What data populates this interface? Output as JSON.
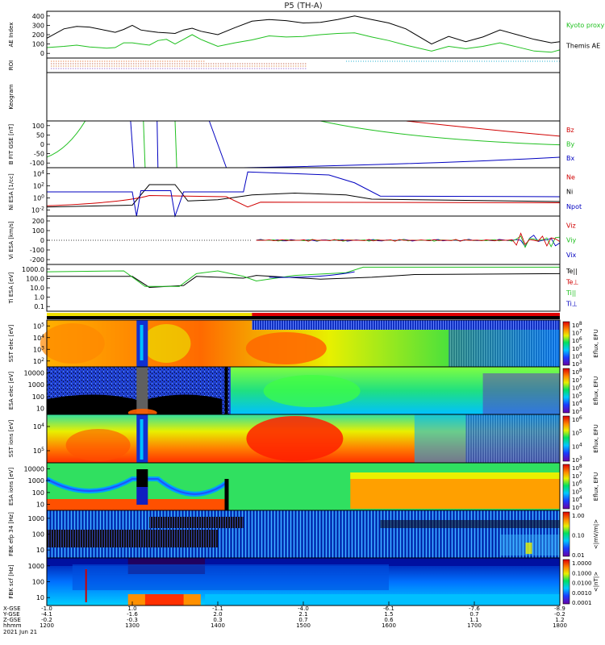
{
  "chart_data": {
    "type": "line",
    "title": "P5 (TH-A)",
    "date_label": "2021 Jun 21",
    "x_axis": {
      "unit_row_labels": [
        "X-GSE",
        "Y-GSE",
        "Z-GSE",
        "hhmm"
      ],
      "hhmm_ticks": [
        "1200",
        "1300",
        "1400",
        "1500",
        "1600",
        "1700",
        "1800"
      ],
      "x_gse": [
        "-1.0",
        "1.0",
        "-1.1",
        "-4.0",
        "-6.1",
        "-7.6",
        "-8.9"
      ],
      "y_gse": [
        "-4.1",
        "-1.6",
        "2.0",
        "2.1",
        "1.5",
        "0.7",
        "-0.2"
      ],
      "z_gse": [
        "-0.2",
        "-0.3",
        "0.3",
        "0.7",
        "0.6",
        "1.1",
        "1.2"
      ]
    },
    "panels": [
      {
        "id": "ae",
        "ylabel": "AE Index",
        "yticks": [
          "0",
          "100",
          "200",
          "300",
          "400"
        ],
        "ylim": [
          0,
          400
        ],
        "legend": [
          "Kyoto proxy AE",
          "Themis AE"
        ],
        "legend_colors": [
          "#20c020",
          "#000000"
        ],
        "series": [
          {
            "name": "Themis AE",
            "color": "#000000",
            "x": [
              0,
              0.2,
              0.35,
              0.5,
              0.7,
              0.8,
              0.9,
              1.0,
              1.1,
              1.2,
              1.3,
              1.4,
              1.5,
              1.6,
              1.7,
              1.8,
              2.0,
              2.2,
              2.4,
              2.6,
              2.8,
              3.0,
              3.2,
              3.4,
              3.6,
              3.8,
              4.0,
              4.2,
              4.5,
              4.7,
              4.9,
              5.1,
              5.3,
              5.5,
              5.7,
              5.9,
              6.0
            ],
            "y": [
              170,
              250,
              270,
              265,
              235,
              220,
              245,
              280,
              240,
              230,
              220,
              215,
              210,
              240,
              255,
              230,
              200,
              260,
              315,
              330,
              320,
              300,
              305,
              330,
              360,
              330,
              300,
              250,
              120,
              185,
              140,
              180,
              240,
              200,
              160,
              130,
              140
            ]
          },
          {
            "name": "Kyoto proxy AE",
            "color": "#20c020",
            "x": [
              0,
              0.2,
              0.35,
              0.5,
              0.7,
              0.8,
              0.9,
              1.0,
              1.1,
              1.2,
              1.3,
              1.4,
              1.5,
              1.6,
              1.7,
              1.8,
              2.0,
              2.2,
              2.4,
              2.6,
              2.8,
              3.0,
              3.2,
              3.4,
              3.6,
              3.8,
              4.0,
              4.2,
              4.5,
              4.7,
              4.9,
              5.1,
              5.3,
              5.5,
              5.7,
              5.9,
              6.0
            ],
            "y": [
              90,
              100,
              110,
              95,
              85,
              90,
              130,
              130,
              120,
              110,
              150,
              160,
              120,
              160,
              200,
              160,
              100,
              130,
              155,
              190,
              180,
              185,
              200,
              210,
              215,
              180,
              150,
              110,
              60,
              100,
              80,
              100,
              130,
              95,
              60,
              50,
              70
            ]
          }
        ]
      },
      {
        "id": "roi",
        "ylabel": "ROI"
      },
      {
        "id": "keogram",
        "ylabel": "Keogram"
      },
      {
        "id": "bfit",
        "ylabel": "B FIT GSE [nT]",
        "yticks": [
          "-100",
          "-50",
          "0",
          "50",
          "100"
        ],
        "ylim": [
          -100,
          100
        ],
        "legend": [
          "Bz",
          "By",
          "Bx"
        ],
        "legend_colors": [
          "#d00000",
          "#20c020",
          "#0000c0"
        ]
      },
      {
        "id": "ni",
        "ylabel": "Ni ESA [1/cc]",
        "yticks": [
          "10^-2",
          "10^0",
          "10^2",
          "10^4"
        ],
        "ylim_exp": [
          -3,
          5
        ],
        "legend": [
          "Ne",
          "Ni",
          "Npot"
        ],
        "legend_colors": [
          "#d00000",
          "#000000",
          "#0000c0"
        ]
      },
      {
        "id": "vi",
        "ylabel": "Vi ESA [km/s]",
        "yticks": [
          "-200",
          "-100",
          "0",
          "100",
          "200"
        ],
        "ylim": [
          -300,
          300
        ],
        "legend": [
          "Viz",
          "Viy",
          "Vix"
        ],
        "legend_colors": [
          "#d00000",
          "#20c020",
          "#0000c0"
        ]
      },
      {
        "id": "ti",
        "ylabel": "Ti ESA [eV]",
        "yticks": [
          "0.1",
          "1.0",
          "10.0",
          "100.0",
          "1000.0"
        ],
        "ylim_exp": [
          -1.3,
          3.8
        ],
        "legend": [
          "Te||",
          "Te⊥",
          "Ti||",
          "Ti⊥"
        ],
        "legend_colors": [
          "#000000",
          "#d00000",
          "#20c020",
          "#0000c0"
        ]
      },
      {
        "id": "sst_e",
        "ylabel": "SST elec [eV]",
        "yticks": [
          "10^2",
          "10^3",
          "10^4",
          "10^5"
        ],
        "colorbar_ticks": [
          "10^8",
          "10^7",
          "10^6",
          "10^5",
          "10^4",
          "10^3"
        ],
        "colorbar_label": "Eflux, EFU"
      },
      {
        "id": "esa_e",
        "ylabel": "ESA elec [eV]",
        "yticks": [
          "10",
          "100",
          "1000",
          "10000"
        ],
        "colorbar_ticks": [
          "10^8",
          "10^7",
          "10^6",
          "10^5",
          "10^4",
          "10^3"
        ],
        "colorbar_label": "Eflux, EFU"
      },
      {
        "id": "sst_i",
        "ylabel": "SST ions [eV]",
        "yticks": [
          "10^5",
          "10^4"
        ],
        "colorbar_ticks": [
          "10^6",
          "10^5",
          "10^4",
          "10^3"
        ],
        "colorbar_label": "Eflux, EFU"
      },
      {
        "id": "esa_i",
        "ylabel": "ESA ions [eV]",
        "yticks": [
          "10",
          "100",
          "1000",
          "10000"
        ],
        "colorbar_ticks": [
          "10^8",
          "10^7",
          "10^6",
          "10^5",
          "10^4",
          "10^3"
        ],
        "colorbar_label": "Eflux, EFU"
      },
      {
        "id": "fbk_e",
        "ylabel": "FBK efp 34 [Hz]",
        "yticks": [
          "10",
          "100",
          "1000"
        ],
        "colorbar_ticks": [
          "1.00",
          "0.10",
          "0.01"
        ],
        "colorbar_label": "<|mV/m|>"
      },
      {
        "id": "fbk_b",
        "ylabel": "FBK scf [Hz]",
        "yticks": [
          "10",
          "100",
          "1000"
        ],
        "colorbar_ticks": [
          "1.0000",
          "0.1000",
          "0.0100",
          "0.0010",
          "0.0001"
        ],
        "colorbar_label": "<|nT|>"
      }
    ]
  }
}
